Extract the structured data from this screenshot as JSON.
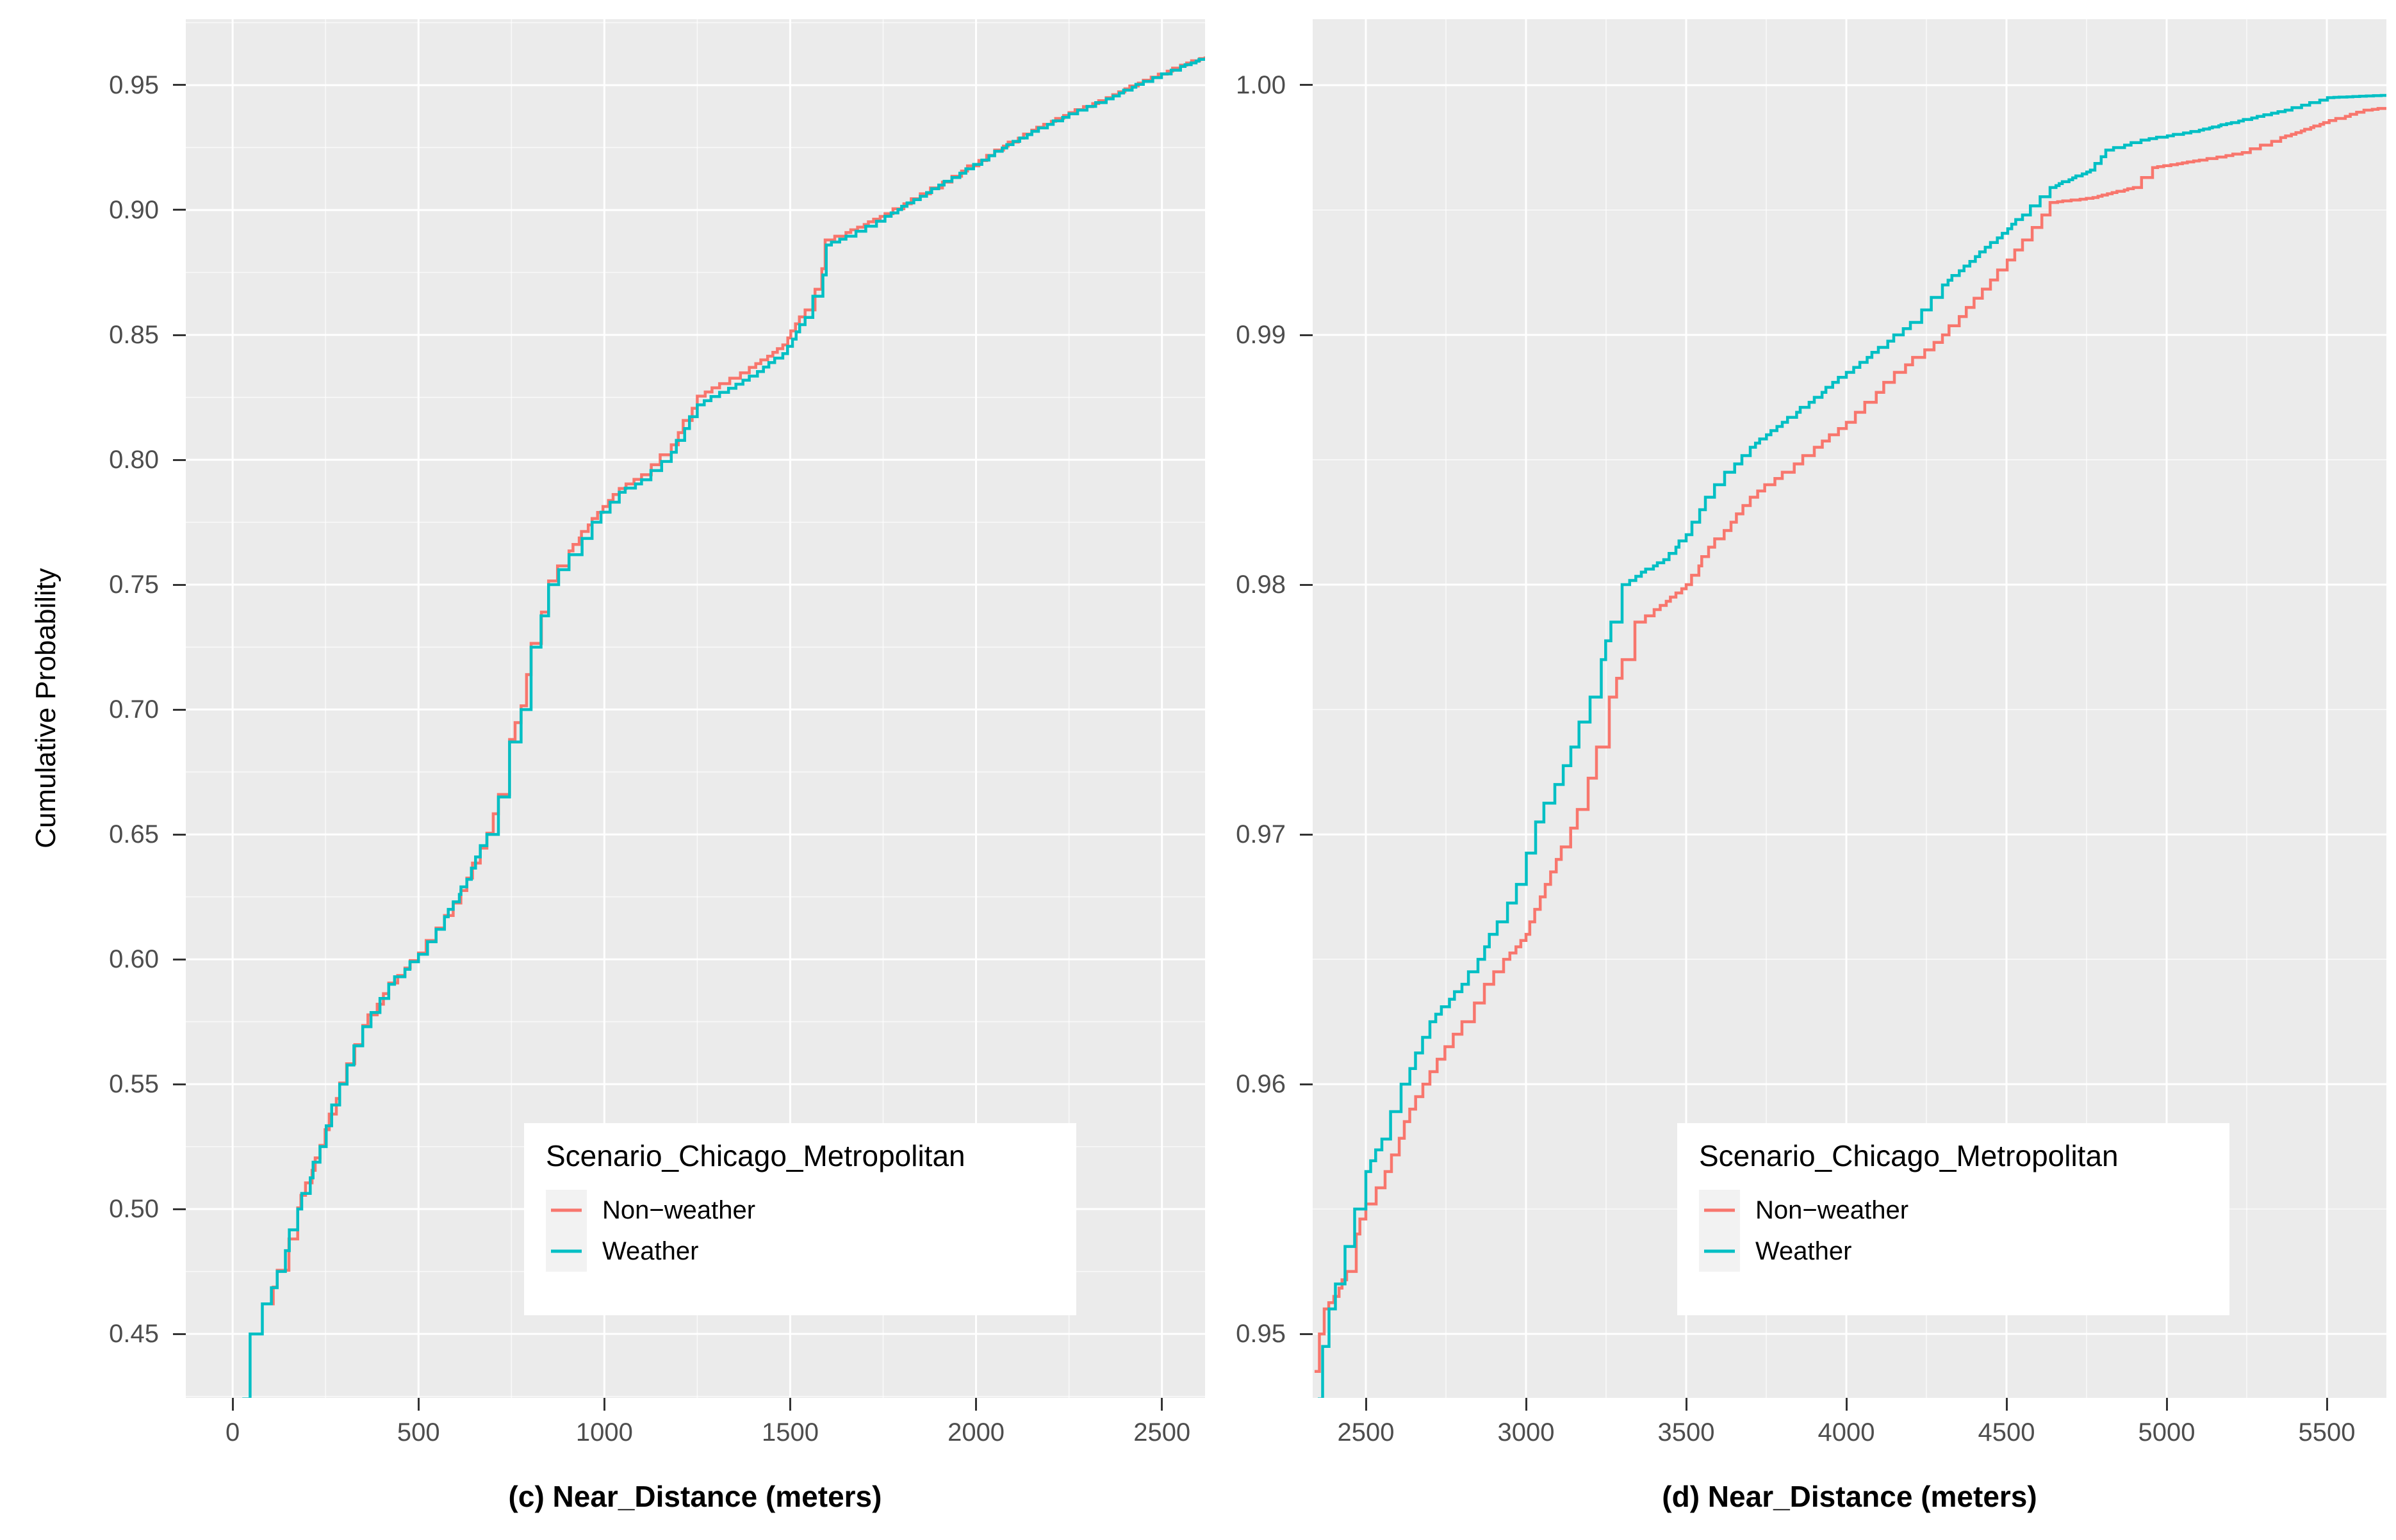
{
  "y_axis_title": "Cumulative Probability",
  "colors": {
    "panel_background": "#ebebeb",
    "grid_major": "#ffffff",
    "grid_minor": "#ffffff",
    "tick_mark": "#333333",
    "tick_label": "#4d4d4d",
    "axis_title": "#000000",
    "non_weather": "#F8766D",
    "weather": "#00BFC4",
    "legend_background": "#ffffff",
    "legend_key_background": "#f2f2f2"
  },
  "chart_data": {
    "type": "line",
    "subtype": "ecdf-step-curves",
    "grid": "major and minor gridlines, white on gray panel",
    "legend_position": "inside lower-right of each panel",
    "legend": {
      "title": "Scenario_Chicago_Metropolitan",
      "items": [
        {
          "label": "Non−weather",
          "color": "#F8766D"
        },
        {
          "label": "Weather",
          "color": "#00BFC4"
        }
      ]
    },
    "panels": [
      {
        "id": "c",
        "xlabel": "(c) Near_Distance (meters)",
        "ylabel": "Cumulative Probability",
        "xlim": [
          -126,
          2616
        ],
        "ylim": [
          0.4244,
          0.9764
        ],
        "x_ticks": [
          0,
          500,
          1000,
          1500,
          2000,
          2500
        ],
        "x_tick_labels": [
          "0",
          "500",
          "1000",
          "1500",
          "2000",
          "2500"
        ],
        "y_ticks": [
          0.45,
          0.5,
          0.55,
          0.6,
          0.65,
          0.7,
          0.75,
          0.8,
          0.85,
          0.9,
          0.95
        ],
        "y_tick_labels": [
          "0.45",
          "0.50",
          "0.55",
          "0.60",
          "0.65",
          "0.70",
          "0.75",
          "0.80",
          "0.85",
          "0.90",
          "0.95"
        ],
        "x_minor": [
          250,
          750,
          1250,
          1750,
          2250
        ],
        "y_minor": [
          0.425,
          0.475,
          0.525,
          0.575,
          0.625,
          0.675,
          0.725,
          0.775,
          0.825,
          0.875,
          0.925,
          0.975
        ],
        "series": [
          {
            "name": "Non−weather",
            "color": "#F8766D",
            "points": [
              [
                95,
                0.462
              ],
              [
                120,
                0.4755
              ],
              [
                175,
                0.5005
              ],
              [
                235,
                0.5255
              ],
              [
                288,
                0.5505
              ],
              [
                350,
                0.5735
              ],
              [
                420,
                0.5905
              ],
              [
                500,
                0.6025
              ],
              [
                570,
                0.6175
              ],
              [
                630,
                0.6325
              ],
              [
                684,
                0.6505
              ],
              [
                715,
                0.666
              ],
              [
                745,
                0.688
              ],
              [
                776,
                0.7015
              ],
              [
                803,
                0.7265
              ],
              [
                850,
                0.7515
              ],
              [
                905,
                0.7635
              ],
              [
                967,
                0.7765
              ],
              [
                1040,
                0.7885
              ],
              [
                1100,
                0.794
              ],
              [
                1180,
                0.806
              ],
              [
                1250,
                0.8255
              ],
              [
                1310,
                0.8305
              ],
              [
                1390,
                0.837
              ],
              [
                1480,
                0.846
              ],
              [
                1540,
                0.86
              ],
              [
                1585,
                0.8765
              ],
              [
                1594,
                0.888
              ],
              [
                1650,
                0.891
              ],
              [
                1755,
                0.8985
              ],
              [
                1850,
                0.9065
              ],
              [
                1935,
                0.9135
              ],
              [
                2050,
                0.924
              ],
              [
                2150,
                0.932
              ],
              [
                2250,
                0.939
              ],
              [
                2350,
                0.945
              ],
              [
                2450,
                0.952
              ],
              [
                2550,
                0.958
              ],
              [
                2616,
                0.9615
              ]
            ]
          },
          {
            "name": "Weather",
            "color": "#00BFC4",
            "points": [
              [
                26,
                0.424
              ],
              [
                47,
                0.45
              ],
              [
                80,
                0.462
              ],
              [
                120,
                0.475
              ],
              [
                175,
                0.5
              ],
              [
                235,
                0.525
              ],
              [
                288,
                0.55
              ],
              [
                350,
                0.573
              ],
              [
                420,
                0.59
              ],
              [
                500,
                0.602
              ],
              [
                570,
                0.617
              ],
              [
                630,
                0.632
              ],
              [
                684,
                0.65
              ],
              [
                715,
                0.665
              ],
              [
                745,
                0.687
              ],
              [
                776,
                0.7
              ],
              [
                803,
                0.725
              ],
              [
                850,
                0.75
              ],
              [
                905,
                0.762
              ],
              [
                967,
                0.775
              ],
              [
                1040,
                0.787
              ],
              [
                1100,
                0.792
              ],
              [
                1180,
                0.803
              ],
              [
                1250,
                0.822
              ],
              [
                1310,
                0.827
              ],
              [
                1390,
                0.8335
              ],
              [
                1480,
                0.8425
              ],
              [
                1540,
                0.857
              ],
              [
                1588,
                0.874
              ],
              [
                1597,
                0.886
              ],
              [
                1650,
                0.8895
              ],
              [
                1755,
                0.8975
              ],
              [
                1850,
                0.9055
              ],
              [
                1935,
                0.913
              ],
              [
                2050,
                0.9235
              ],
              [
                2150,
                0.9315
              ],
              [
                2250,
                0.9385
              ],
              [
                2350,
                0.9445
              ],
              [
                2450,
                0.9515
              ],
              [
                2550,
                0.9575
              ],
              [
                2616,
                0.961
              ]
            ]
          }
        ]
      },
      {
        "id": "d",
        "xlabel": "(d) Near_Distance (meters)",
        "ylabel": "",
        "xlim": [
          2334,
          5686
        ],
        "ylim": [
          0.94744,
          1.00264
        ],
        "x_ticks": [
          2500,
          3000,
          3500,
          4000,
          4500,
          5000,
          5500
        ],
        "x_tick_labels": [
          "2500",
          "3000",
          "3500",
          "4000",
          "4500",
          "5000",
          "5500"
        ],
        "y_ticks": [
          0.95,
          0.96,
          0.97,
          0.98,
          0.99,
          1.0
        ],
        "y_tick_labels": [
          "0.95",
          "0.96",
          "0.97",
          "0.98",
          "0.99",
          "1.00"
        ],
        "x_minor": [
          2750,
          3250,
          3750,
          4250,
          4750,
          5250
        ],
        "y_minor": [
          0.955,
          0.965,
          0.975,
          0.985,
          0.995
        ],
        "series": [
          {
            "name": "Non−weather",
            "color": "#F8766D",
            "points": [
              [
                2340,
                0.9485
              ],
              [
                2355,
                0.95
              ],
              [
                2370,
                0.951
              ],
              [
                2400,
                0.9515
              ],
              [
                2440,
                0.9525
              ],
              [
                2470,
                0.954
              ],
              [
                2500,
                0.9552
              ],
              [
                2560,
                0.9565
              ],
              [
                2620,
                0.9585
              ],
              [
                2700,
                0.9605
              ],
              [
                2800,
                0.9625
              ],
              [
                2870,
                0.964
              ],
              [
                2930,
                0.965
              ],
              [
                3000,
                0.966
              ],
              [
                3060,
                0.968
              ],
              [
                3110,
                0.9695
              ],
              [
                3160,
                0.971
              ],
              [
                3220,
                0.9735
              ],
              [
                3260,
                0.9755
              ],
              [
                3300,
                0.977
              ],
              [
                3340,
                0.9785
              ],
              [
                3400,
                0.979
              ],
              [
                3500,
                0.98
              ],
              [
                3570,
                0.9815
              ],
              [
                3640,
                0.9825
              ],
              [
                3700,
                0.9835
              ],
              [
                3800,
                0.9845
              ],
              [
                3900,
                0.9855
              ],
              [
                4000,
                0.9865
              ],
              [
                4150,
                0.9885
              ],
              [
                4300,
                0.99
              ],
              [
                4450,
                0.9922
              ],
              [
                4550,
                0.9938
              ],
              [
                4636,
                0.9953
              ],
              [
                4770,
                0.9955
              ],
              [
                4896,
                0.9959
              ],
              [
                4956,
                0.9967
              ],
              [
                5102,
                0.997
              ],
              [
                5236,
                0.9973
              ],
              [
                5356,
                0.9979
              ],
              [
                5490,
                0.9985
              ],
              [
                5616,
                0.999
              ],
              [
                5686,
                0.9991
              ]
            ]
          },
          {
            "name": "Weather",
            "color": "#00BFC4",
            "points": [
              [
                2350,
                0.9474
              ],
              [
                2365,
                0.9495
              ],
              [
                2385,
                0.951
              ],
              [
                2405,
                0.952
              ],
              [
                2435,
                0.9535
              ],
              [
                2465,
                0.955
              ],
              [
                2500,
                0.9565
              ],
              [
                2550,
                0.9578
              ],
              [
                2610,
                0.96
              ],
              [
                2700,
                0.9625
              ],
              [
                2800,
                0.964
              ],
              [
                2850,
                0.965
              ],
              [
                2910,
                0.9665
              ],
              [
                2970,
                0.968
              ],
              [
                3030,
                0.9705
              ],
              [
                3090,
                0.972
              ],
              [
                3140,
                0.9735
              ],
              [
                3200,
                0.9755
              ],
              [
                3235,
                0.977
              ],
              [
                3265,
                0.9785
              ],
              [
                3300,
                0.98
              ],
              [
                3360,
                0.9805
              ],
              [
                3430,
                0.981
              ],
              [
                3500,
                0.982
              ],
              [
                3560,
                0.9835
              ],
              [
                3620,
                0.9845
              ],
              [
                3700,
                0.9855
              ],
              [
                3800,
                0.9865
              ],
              [
                3900,
                0.9875
              ],
              [
                4000,
                0.9885
              ],
              [
                4100,
                0.9895
              ],
              [
                4200,
                0.9905
              ],
              [
                4300,
                0.992
              ],
              [
                4450,
                0.9937
              ],
              [
                4550,
                0.9948
              ],
              [
                4636,
                0.9959
              ],
              [
                4762,
                0.9966
              ],
              [
                4810,
                0.9974
              ],
              [
                4920,
                0.9978
              ],
              [
                5102,
                0.9982
              ],
              [
                5202,
                0.9985
              ],
              [
                5370,
                0.999
              ],
              [
                5502,
                0.9995
              ],
              [
                5686,
                0.9996
              ]
            ]
          }
        ]
      }
    ]
  }
}
